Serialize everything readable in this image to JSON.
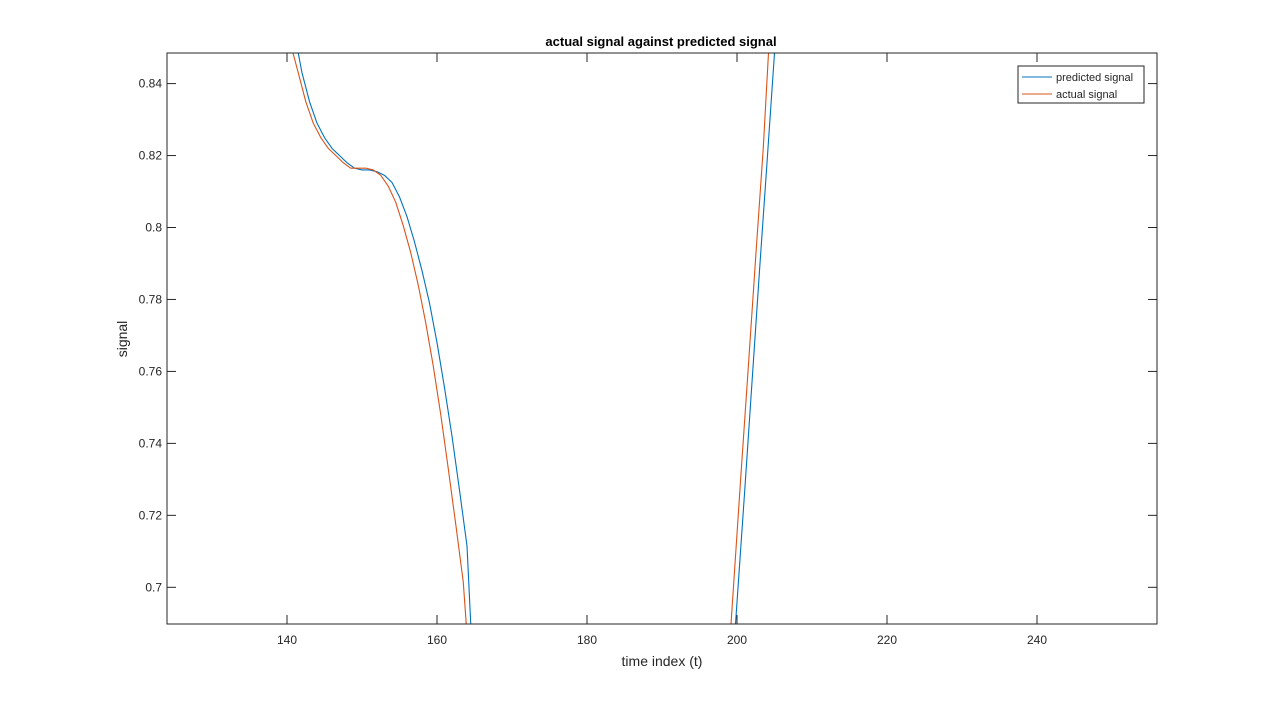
{
  "chart_data": {
    "type": "line",
    "title": "actual signal against predicted signal",
    "xlabel": "time index (t)",
    "ylabel": "signal",
    "xlim": [
      124,
      256
    ],
    "ylim": [
      0.6898,
      0.8485
    ],
    "xticks": [
      140,
      160,
      180,
      200,
      220,
      240
    ],
    "yticks": [
      0.7,
      0.72,
      0.74,
      0.76,
      0.78,
      0.8,
      0.82,
      0.84
    ],
    "xtick_labels": [
      "140",
      "160",
      "180",
      "200",
      "220",
      "240"
    ],
    "ytick_labels": [
      "0.7",
      "0.72",
      "0.74",
      "0.76",
      "0.78",
      "0.8",
      "0.82",
      "0.84"
    ],
    "grid": false,
    "legend_position": "top-right",
    "series": [
      {
        "name": "predicted signal",
        "color": "#0072BD",
        "x": [
          141.5,
          142,
          143,
          144,
          145,
          146,
          147,
          148,
          149,
          150,
          151,
          152,
          153,
          154,
          155,
          156,
          157,
          158,
          159,
          160,
          161,
          162,
          163,
          164,
          164.5,
          199.8,
          201,
          202,
          203,
          204,
          205
        ],
        "y": [
          0.8485,
          0.843,
          0.835,
          0.829,
          0.825,
          0.822,
          0.82,
          0.818,
          0.8165,
          0.816,
          0.816,
          0.8155,
          0.8145,
          0.8125,
          0.8085,
          0.803,
          0.796,
          0.788,
          0.779,
          0.768,
          0.7555,
          0.742,
          0.727,
          0.7115,
          0.6898,
          0.6898,
          0.726,
          0.757,
          0.788,
          0.818,
          0.8485
        ]
      },
      {
        "name": "actual signal",
        "color": "#D95319",
        "x": [
          140.8,
          141.5,
          142.5,
          143.5,
          144.5,
          145.5,
          146.5,
          147.5,
          148.5,
          149.5,
          150.5,
          151.5,
          152.5,
          153.5,
          154.5,
          155.5,
          156.5,
          157.5,
          158.5,
          159.5,
          160.5,
          161.5,
          162.5,
          163.5,
          163.9,
          199.2,
          200.5,
          201.5,
          202.5,
          203.5,
          204.2
        ],
        "y": [
          0.8485,
          0.843,
          0.835,
          0.829,
          0.825,
          0.822,
          0.82,
          0.818,
          0.8165,
          0.8165,
          0.8165,
          0.816,
          0.8145,
          0.8115,
          0.807,
          0.8005,
          0.793,
          0.784,
          0.7735,
          0.7615,
          0.748,
          0.733,
          0.7175,
          0.7015,
          0.6898,
          0.6898,
          0.7305,
          0.761,
          0.792,
          0.822,
          0.8485
        ]
      }
    ]
  }
}
